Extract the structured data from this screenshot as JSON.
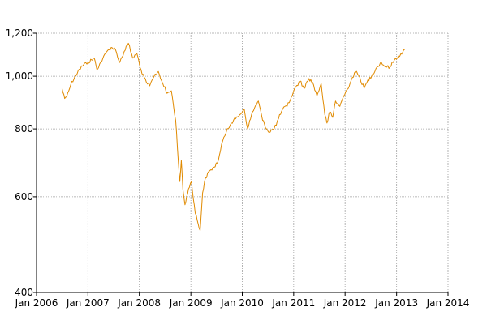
{
  "chart_data": {
    "type": "line",
    "title": "",
    "xlabel": "",
    "ylabel": "",
    "y_scale": "log",
    "ylim": [
      400,
      1200
    ],
    "xlim": [
      "2006-01-01",
      "2014-01-01"
    ],
    "grid": true,
    "legend": "none",
    "colors": {
      "series": "#e08a00",
      "grid": "#a0a0a0",
      "axis": "#000000"
    },
    "y_ticks": [
      {
        "value": 400,
        "label": "400"
      },
      {
        "value": 600,
        "label": "600"
      },
      {
        "value": 800,
        "label": "800"
      },
      {
        "value": 1000,
        "label": "1,000"
      },
      {
        "value": 1200,
        "label": "1,200"
      }
    ],
    "x_ticks": [
      {
        "value": "2006-01-01",
        "label": "Jan 2006"
      },
      {
        "value": "2007-01-01",
        "label": "Jan 2007"
      },
      {
        "value": "2008-01-01",
        "label": "Jan 2008"
      },
      {
        "value": "2009-01-01",
        "label": "Jan 2009"
      },
      {
        "value": "2010-01-01",
        "label": "Jan 2010"
      },
      {
        "value": "2011-01-01",
        "label": "Jan 2011"
      },
      {
        "value": "2012-01-01",
        "label": "Jan 2012"
      },
      {
        "value": "2013-01-01",
        "label": "Jan 2013"
      },
      {
        "value": "2014-01-01",
        "label": "Jan 2014"
      }
    ],
    "series": [
      {
        "x": [
          "2006-07-01",
          "2006-07-20",
          "2006-08-10",
          "2006-09-01",
          "2006-10-01",
          "2006-11-01",
          "2006-12-01",
          "2007-01-01",
          "2007-02-15",
          "2007-03-05",
          "2007-04-15",
          "2007-05-15",
          "2007-06-15",
          "2007-07-15",
          "2007-08-15",
          "2007-09-15",
          "2007-10-15",
          "2007-11-15",
          "2007-12-15",
          "2008-01-20",
          "2008-02-20",
          "2008-03-15",
          "2008-04-15",
          "2008-05-15",
          "2008-06-15",
          "2008-07-15",
          "2008-08-15",
          "2008-09-15",
          "2008-10-05",
          "2008-10-15",
          "2008-10-25",
          "2008-11-05",
          "2008-11-20",
          "2008-12-15",
          "2009-01-05",
          "2009-02-01",
          "2009-03-08",
          "2009-03-25",
          "2009-04-15",
          "2009-05-15",
          "2009-06-15",
          "2009-07-15",
          "2009-08-15",
          "2009-09-15",
          "2009-10-15",
          "2009-11-15",
          "2009-12-15",
          "2010-01-15",
          "2010-02-08",
          "2010-03-15",
          "2010-04-25",
          "2010-05-25",
          "2010-07-05",
          "2010-08-15",
          "2010-09-15",
          "2010-10-15",
          "2010-11-15",
          "2010-12-15",
          "2011-01-15",
          "2011-02-15",
          "2011-03-15",
          "2011-04-20",
          "2011-05-15",
          "2011-06-15",
          "2011-07-15",
          "2011-08-10",
          "2011-08-25",
          "2011-09-15",
          "2011-10-05",
          "2011-10-25",
          "2011-11-25",
          "2011-12-15",
          "2012-01-15",
          "2012-02-15",
          "2012-03-15",
          "2012-04-15",
          "2012-05-15",
          "2012-06-05",
          "2012-07-15",
          "2012-08-15",
          "2012-09-15",
          "2012-10-15",
          "2012-11-15",
          "2012-12-15",
          "2013-01-15",
          "2013-02-15",
          "2013-03-01"
        ],
        "y": [
          950,
          910,
          930,
          965,
          1000,
          1030,
          1050,
          1060,
          1080,
          1030,
          1075,
          1110,
          1130,
          1120,
          1060,
          1110,
          1150,
          1080,
          1100,
          1010,
          975,
          960,
          1000,
          1020,
          970,
          930,
          940,
          830,
          690,
          640,
          700,
          620,
          580,
          620,
          640,
          560,
          520,
          610,
          650,
          670,
          680,
          700,
          760,
          800,
          820,
          835,
          850,
          870,
          800,
          860,
          900,
          830,
          790,
          800,
          835,
          870,
          880,
          915,
          955,
          980,
          950,
          990,
          975,
          920,
          970,
          850,
          820,
          860,
          840,
          900,
          880,
          910,
          945,
          985,
          1020,
          995,
          950,
          975,
          1010,
          1040,
          1060,
          1040,
          1040,
          1070,
          1090,
          1110,
          1120
        ]
      }
    ]
  }
}
